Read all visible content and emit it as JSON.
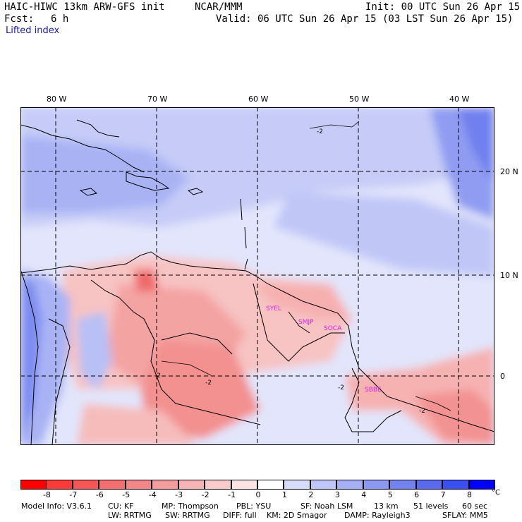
{
  "header": {
    "model": "HAIC-HIWC 13km ARW-GFS init",
    "org": "NCAR/MMM",
    "init": "Init: 00 UTC Sun 26 Apr 15",
    "fcst_label": "Fcst:",
    "fcst_value": "6 h",
    "valid": "Valid: 06 UTC Sun 26 Apr 15 (03 LST Sun 26 Apr 15)",
    "field": "Lifted index"
  },
  "map": {
    "lon_labels": [
      "80 W",
      "70 W",
      "60 W",
      "50 W",
      "40 W"
    ],
    "lat_labels": [
      "20 N",
      "10 N",
      "0"
    ],
    "stations": [
      "SYEL",
      "SMJP",
      "SOCA",
      "SBBE"
    ],
    "contour_labels": [
      "-2",
      "-2",
      "-2",
      "-2",
      "-2"
    ]
  },
  "colorbar": {
    "labels": [
      "-8",
      "-7",
      "-6",
      "-5",
      "-4",
      "-3",
      "-2",
      "-1",
      "0",
      "1",
      "2",
      "3",
      "4",
      "5",
      "6",
      "7",
      "8"
    ],
    "unit": "°C",
    "colors": [
      "#ff0000",
      "#fb3a3a",
      "#f75656",
      "#f47070",
      "#f38686",
      "#f39c9c",
      "#f6b3b3",
      "#f9cbcb",
      "#fde4e4",
      "#ffffff",
      "#d8dcfb",
      "#bfc6f9",
      "#a6b0f6",
      "#8c99f3",
      "#7282f1",
      "#586bee",
      "#3a4ff0",
      "#0000ff"
    ]
  },
  "model_info": {
    "line1": [
      "Model Info: V3.6.1",
      "CU: KF",
      "MP: Thompson",
      "PBL: YSU",
      "SF: Noah LSM",
      "13 km",
      "51 levels",
      "60 sec"
    ],
    "line2": [
      "LW: RRTMG",
      "SW: RRTMG",
      "DIFF: full",
      "KM: 2D Smagor",
      "DAMP: Rayleigh3",
      "SFLAY: MM5"
    ]
  }
}
